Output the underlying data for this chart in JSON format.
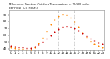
{
  "title": "Milwaukee Weather Outdoor Temperature vs THSW Index\nper Hour  (24 Hours)",
  "title_fontsize": 3.0,
  "background_color": "#ffffff",
  "grid_color": "#999999",
  "hours": [
    0,
    1,
    2,
    3,
    4,
    5,
    6,
    7,
    8,
    9,
    10,
    11,
    12,
    13,
    14,
    15,
    16,
    17,
    18,
    19,
    20,
    21,
    22,
    23
  ],
  "temp": [
    44,
    43,
    42,
    42,
    41,
    41,
    43,
    46,
    50,
    55,
    60,
    65,
    69,
    72,
    73,
    72,
    70,
    67,
    63,
    59,
    55,
    52,
    49,
    47
  ],
  "thsw": [
    42,
    41,
    40,
    40,
    39,
    39,
    42,
    48,
    56,
    66,
    76,
    83,
    88,
    91,
    90,
    86,
    80,
    72,
    64,
    57,
    51,
    47,
    44,
    42
  ],
  "temp_color": "#cc0000",
  "thsw_color": "#ff8800",
  "ylim": [
    38,
    97
  ],
  "yticks": [
    40,
    50,
    60,
    70,
    80,
    90
  ],
  "ytick_labels": [
    "40",
    "50",
    "60",
    "70",
    "80",
    "90"
  ],
  "xlim": [
    -0.5,
    23.5
  ],
  "xticks": [
    0,
    1,
    2,
    3,
    4,
    5,
    6,
    7,
    8,
    9,
    10,
    11,
    12,
    13,
    14,
    15,
    16,
    17,
    18,
    19,
    20,
    21,
    22,
    23
  ],
  "xtick_labels": [
    "0",
    "1",
    "2",
    "3",
    "4",
    "5",
    "6",
    "7",
    "8",
    "9",
    "10",
    "11",
    "12",
    "13",
    "14",
    "15",
    "16",
    "17",
    "18",
    "19",
    "20",
    "21",
    "22",
    "23"
  ],
  "marker_size": 1.5,
  "tick_fontsize": 3.0,
  "vgrid_positions": [
    4,
    8,
    12,
    16,
    20
  ]
}
